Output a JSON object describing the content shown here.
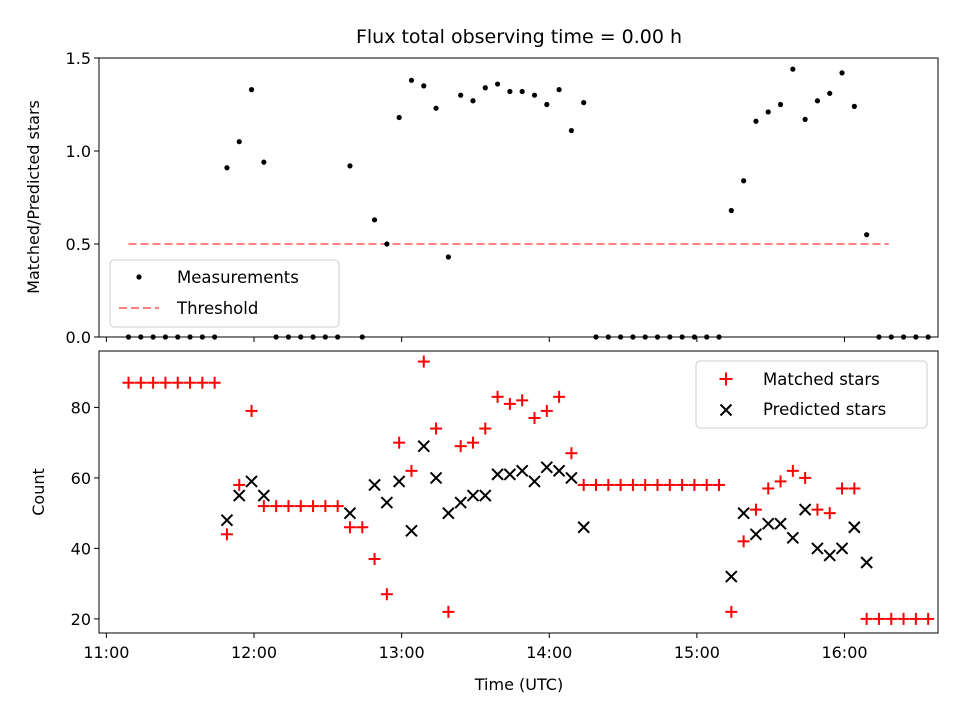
{
  "chart_data": [
    {
      "type": "scatter",
      "title": "Flux total observing time = 0.00 h",
      "ylabel": "Matched/Predicted stars",
      "ylim": [
        0,
        1.5
      ],
      "yticks": [
        "0.0",
        "0.5",
        "1.0",
        "1.5"
      ],
      "xlim_minutes": [
        657,
        998
      ],
      "legend": {
        "placement": "lower-left",
        "entries": [
          {
            "label": "Measurements",
            "marker": "dot",
            "color": "#000000"
          },
          {
            "label": "Threshold",
            "marker": "dashed-line",
            "color": "#ff7f7f"
          }
        ]
      },
      "threshold": {
        "y": 0.5,
        "x_start": "11:09",
        "x_end": "16:18",
        "color": "#ff7f7f"
      },
      "series": [
        {
          "name": "Measurements",
          "color": "#000000",
          "points": [
            [
              "11:09",
              0
            ],
            [
              "11:14",
              0
            ],
            [
              "11:19",
              0
            ],
            [
              "11:24",
              0
            ],
            [
              "11:29",
              0
            ],
            [
              "11:34",
              0
            ],
            [
              "11:39",
              0
            ],
            [
              "11:44",
              0
            ],
            [
              "11:49",
              0.91
            ],
            [
              "11:54",
              1.05
            ],
            [
              "11:59",
              1.33
            ],
            [
              "12:04",
              0.94
            ],
            [
              "12:09",
              0
            ],
            [
              "12:14",
              0
            ],
            [
              "12:19",
              0
            ],
            [
              "12:24",
              0
            ],
            [
              "12:29",
              0
            ],
            [
              "12:34",
              0
            ],
            [
              "12:39",
              0.92
            ],
            [
              "12:44",
              0
            ],
            [
              "12:49",
              0.63
            ],
            [
              "12:54",
              0.5
            ],
            [
              "12:59",
              1.18
            ],
            [
              "13:04",
              1.38
            ],
            [
              "13:09",
              1.35
            ],
            [
              "13:14",
              1.23
            ],
            [
              "13:19",
              0.43
            ],
            [
              "13:24",
              1.3
            ],
            [
              "13:29",
              1.27
            ],
            [
              "13:34",
              1.34
            ],
            [
              "13:39",
              1.36
            ],
            [
              "13:44",
              1.32
            ],
            [
              "13:49",
              1.32
            ],
            [
              "13:54",
              1.3
            ],
            [
              "13:59",
              1.25
            ],
            [
              "14:04",
              1.33
            ],
            [
              "14:09",
              1.11
            ],
            [
              "14:14",
              1.26
            ],
            [
              "14:19",
              0
            ],
            [
              "14:24",
              0
            ],
            [
              "14:29",
              0
            ],
            [
              "14:34",
              0
            ],
            [
              "14:39",
              0
            ],
            [
              "14:44",
              0
            ],
            [
              "14:49",
              0
            ],
            [
              "14:54",
              0
            ],
            [
              "14:59",
              0
            ],
            [
              "15:04",
              0
            ],
            [
              "15:09",
              0
            ],
            [
              "15:14",
              0.68
            ],
            [
              "15:19",
              0.84
            ],
            [
              "15:24",
              1.16
            ],
            [
              "15:29",
              1.21
            ],
            [
              "15:34",
              1.25
            ],
            [
              "15:39",
              1.44
            ],
            [
              "15:44",
              1.17
            ],
            [
              "15:49",
              1.27
            ],
            [
              "15:54",
              1.31
            ],
            [
              "15:59",
              1.42
            ],
            [
              "16:04",
              1.24
            ],
            [
              "16:09",
              0.55
            ],
            [
              "16:14",
              0
            ],
            [
              "16:19",
              0
            ],
            [
              "16:24",
              0
            ],
            [
              "16:29",
              0
            ],
            [
              "16:34",
              0
            ]
          ]
        }
      ]
    },
    {
      "type": "scatter",
      "xlabel": "Time (UTC)",
      "ylabel": "Count",
      "ylim": [
        16,
        96
      ],
      "yticks": [
        "20",
        "40",
        "60",
        "80"
      ],
      "xticks": [
        "11:00",
        "12:00",
        "13:00",
        "14:00",
        "15:00",
        "16:00"
      ],
      "xlim_minutes": [
        657,
        998
      ],
      "legend": {
        "placement": "upper-right",
        "entries": [
          {
            "label": "Matched stars",
            "marker": "plus",
            "color": "#ff0000"
          },
          {
            "label": "Predicted stars",
            "marker": "x",
            "color": "#000000"
          }
        ]
      },
      "series": [
        {
          "name": "Matched stars",
          "marker": "plus",
          "color": "#ff0000",
          "points": [
            [
              "11:09",
              87
            ],
            [
              "11:14",
              87
            ],
            [
              "11:19",
              87
            ],
            [
              "11:24",
              87
            ],
            [
              "11:29",
              87
            ],
            [
              "11:34",
              87
            ],
            [
              "11:39",
              87
            ],
            [
              "11:44",
              87
            ],
            [
              "11:49",
              44
            ],
            [
              "11:54",
              58
            ],
            [
              "11:59",
              79
            ],
            [
              "12:04",
              52
            ],
            [
              "12:09",
              52
            ],
            [
              "12:14",
              52
            ],
            [
              "12:19",
              52
            ],
            [
              "12:24",
              52
            ],
            [
              "12:29",
              52
            ],
            [
              "12:34",
              52
            ],
            [
              "12:39",
              46
            ],
            [
              "12:44",
              46
            ],
            [
              "12:49",
              37
            ],
            [
              "12:54",
              27
            ],
            [
              "12:59",
              70
            ],
            [
              "13:04",
              62
            ],
            [
              "13:09",
              93
            ],
            [
              "13:14",
              74
            ],
            [
              "13:19",
              22
            ],
            [
              "13:24",
              69
            ],
            [
              "13:29",
              70
            ],
            [
              "13:34",
              74
            ],
            [
              "13:39",
              83
            ],
            [
              "13:44",
              81
            ],
            [
              "13:49",
              82
            ],
            [
              "13:54",
              77
            ],
            [
              "13:59",
              79
            ],
            [
              "14:04",
              83
            ],
            [
              "14:09",
              67
            ],
            [
              "14:14",
              58
            ],
            [
              "14:19",
              58
            ],
            [
              "14:24",
              58
            ],
            [
              "14:29",
              58
            ],
            [
              "14:34",
              58
            ],
            [
              "14:39",
              58
            ],
            [
              "14:44",
              58
            ],
            [
              "14:49",
              58
            ],
            [
              "14:54",
              58
            ],
            [
              "14:59",
              58
            ],
            [
              "15:04",
              58
            ],
            [
              "15:09",
              58
            ],
            [
              "15:14",
              22
            ],
            [
              "15:19",
              42
            ],
            [
              "15:24",
              51
            ],
            [
              "15:29",
              57
            ],
            [
              "15:34",
              59
            ],
            [
              "15:39",
              62
            ],
            [
              "15:44",
              60
            ],
            [
              "15:49",
              51
            ],
            [
              "15:54",
              50
            ],
            [
              "15:59",
              57
            ],
            [
              "16:04",
              57
            ],
            [
              "16:09",
              20
            ],
            [
              "16:14",
              20
            ],
            [
              "16:19",
              20
            ],
            [
              "16:24",
              20
            ],
            [
              "16:29",
              20
            ],
            [
              "16:34",
              20
            ]
          ]
        },
        {
          "name": "Predicted stars",
          "marker": "x",
          "color": "#000000",
          "points": [
            [
              "11:49",
              48
            ],
            [
              "11:54",
              55
            ],
            [
              "11:59",
              59
            ],
            [
              "12:04",
              55
            ],
            [
              "12:39",
              50
            ],
            [
              "12:49",
              58
            ],
            [
              "12:54",
              53
            ],
            [
              "12:59",
              59
            ],
            [
              "13:04",
              45
            ],
            [
              "13:09",
              69
            ],
            [
              "13:14",
              60
            ],
            [
              "13:19",
              50
            ],
            [
              "13:24",
              53
            ],
            [
              "13:29",
              55
            ],
            [
              "13:34",
              55
            ],
            [
              "13:39",
              61
            ],
            [
              "13:44",
              61
            ],
            [
              "13:49",
              62
            ],
            [
              "13:54",
              59
            ],
            [
              "13:59",
              63
            ],
            [
              "14:04",
              62
            ],
            [
              "14:09",
              60
            ],
            [
              "14:14",
              46
            ],
            [
              "15:14",
              32
            ],
            [
              "15:19",
              50
            ],
            [
              "15:24",
              44
            ],
            [
              "15:29",
              47
            ],
            [
              "15:34",
              47
            ],
            [
              "15:39",
              43
            ],
            [
              "15:44",
              51
            ],
            [
              "15:49",
              40
            ],
            [
              "15:54",
              38
            ],
            [
              "15:59",
              40
            ],
            [
              "16:04",
              46
            ],
            [
              "16:09",
              36
            ]
          ]
        }
      ]
    }
  ]
}
